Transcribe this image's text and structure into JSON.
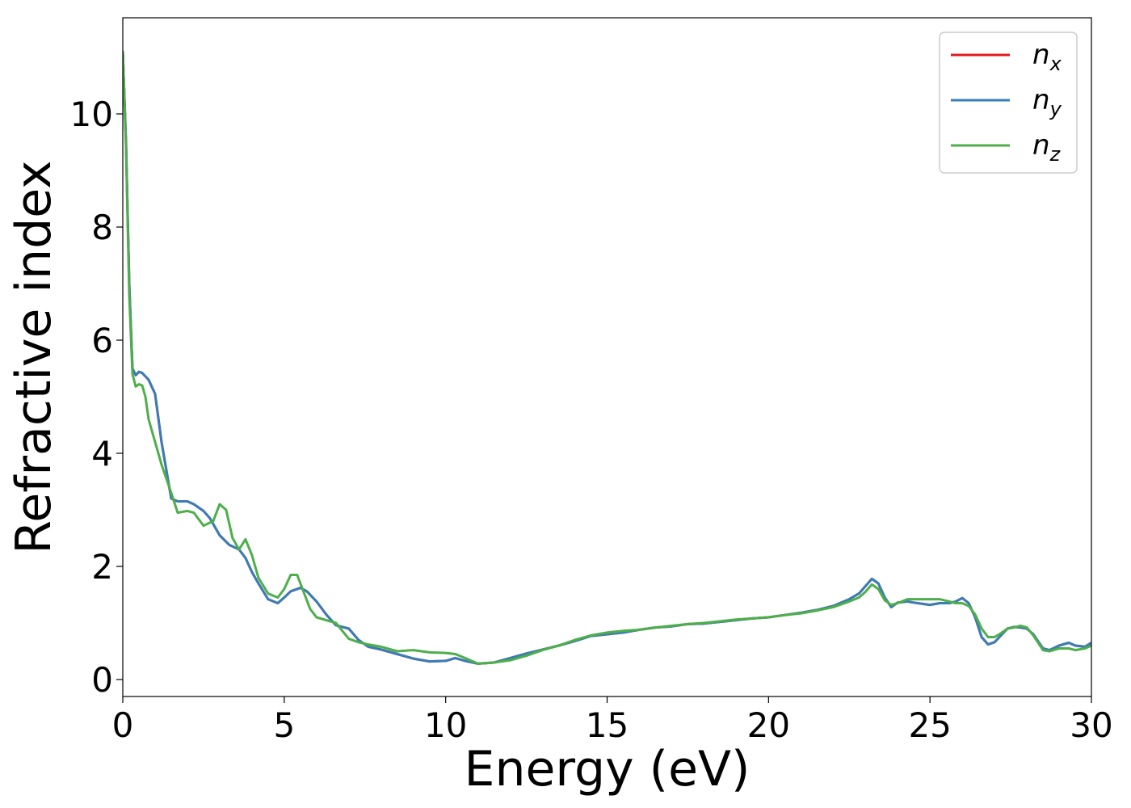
{
  "chart_data": {
    "type": "line",
    "title": "",
    "xlabel": "Energy (eV)",
    "ylabel": "Refractive index",
    "xlim": [
      0,
      30
    ],
    "ylim": [
      -0.3,
      11.7
    ],
    "xticks": [
      0,
      5,
      10,
      15,
      20,
      25,
      30
    ],
    "xtick_labels": [
      "0",
      "5",
      "10",
      "15",
      "20",
      "25",
      "30"
    ],
    "yticks": [
      0,
      2,
      4,
      6,
      8,
      10
    ],
    "ytick_labels": [
      "0",
      "2",
      "4",
      "6",
      "8",
      "10"
    ],
    "grid": false,
    "legend": "top-right",
    "series": [
      {
        "name": "n_x",
        "label_base": "n",
        "label_sub": "x",
        "color": "#e41a1c",
        "x": [
          0.0,
          0.1,
          0.2,
          0.3,
          0.4,
          0.5,
          0.6,
          0.8,
          1.0,
          1.2,
          1.5,
          1.7,
          2.0,
          2.2,
          2.5,
          2.7,
          3.0,
          3.3,
          3.6,
          3.8,
          4.0,
          4.2,
          4.5,
          4.8,
          5.0,
          5.2,
          5.5,
          5.7,
          6.0,
          6.3,
          6.6,
          7.0,
          7.3,
          7.6,
          8.0,
          8.5,
          9.0,
          9.5,
          10.0,
          10.3,
          10.6,
          11.0,
          11.5,
          12.0,
          12.5,
          13.0,
          13.5,
          14.0,
          14.5,
          15.0,
          15.5,
          16.0,
          16.5,
          17.0,
          17.5,
          18.0,
          18.5,
          19.0,
          19.5,
          20.0,
          20.5,
          21.0,
          21.5,
          22.0,
          22.5,
          22.8,
          23.0,
          23.2,
          23.4,
          23.6,
          23.8,
          24.0,
          24.3,
          24.5,
          25.0,
          25.3,
          25.6,
          25.8,
          26.0,
          26.2,
          26.4,
          26.6,
          26.8,
          27.0,
          27.2,
          27.4,
          27.6,
          27.8,
          28.0,
          28.2,
          28.5,
          28.7,
          29.0,
          29.3,
          29.5,
          29.8,
          30.0
        ],
        "y": [
          11.1,
          9.5,
          7.0,
          5.5,
          5.38,
          5.44,
          5.42,
          5.3,
          5.05,
          4.2,
          3.2,
          3.15,
          3.15,
          3.1,
          2.98,
          2.85,
          2.55,
          2.38,
          2.3,
          2.15,
          1.9,
          1.7,
          1.42,
          1.35,
          1.45,
          1.56,
          1.62,
          1.56,
          1.38,
          1.15,
          0.96,
          0.9,
          0.7,
          0.58,
          0.53,
          0.45,
          0.37,
          0.32,
          0.33,
          0.38,
          0.33,
          0.28,
          0.3,
          0.38,
          0.46,
          0.53,
          0.6,
          0.68,
          0.77,
          0.8,
          0.83,
          0.88,
          0.92,
          0.94,
          0.98,
          0.99,
          1.02,
          1.05,
          1.08,
          1.1,
          1.14,
          1.18,
          1.23,
          1.3,
          1.42,
          1.52,
          1.65,
          1.78,
          1.7,
          1.45,
          1.28,
          1.36,
          1.38,
          1.36,
          1.32,
          1.35,
          1.35,
          1.38,
          1.44,
          1.35,
          1.1,
          0.75,
          0.62,
          0.66,
          0.78,
          0.9,
          0.93,
          0.92,
          0.9,
          0.8,
          0.55,
          0.52,
          0.6,
          0.65,
          0.6,
          0.58,
          0.65
        ]
      },
      {
        "name": "n_y",
        "label_base": "n",
        "label_sub": "y",
        "color": "#377eb8",
        "x": [
          0.0,
          0.1,
          0.2,
          0.3,
          0.4,
          0.5,
          0.6,
          0.8,
          1.0,
          1.2,
          1.5,
          1.7,
          2.0,
          2.2,
          2.5,
          2.7,
          3.0,
          3.3,
          3.6,
          3.8,
          4.0,
          4.2,
          4.5,
          4.8,
          5.0,
          5.2,
          5.5,
          5.7,
          6.0,
          6.3,
          6.6,
          7.0,
          7.3,
          7.6,
          8.0,
          8.5,
          9.0,
          9.5,
          10.0,
          10.3,
          10.6,
          11.0,
          11.5,
          12.0,
          12.5,
          13.0,
          13.5,
          14.0,
          14.5,
          15.0,
          15.5,
          16.0,
          16.5,
          17.0,
          17.5,
          18.0,
          18.5,
          19.0,
          19.5,
          20.0,
          20.5,
          21.0,
          21.5,
          22.0,
          22.5,
          22.8,
          23.0,
          23.2,
          23.4,
          23.6,
          23.8,
          24.0,
          24.3,
          24.5,
          25.0,
          25.3,
          25.6,
          25.8,
          26.0,
          26.2,
          26.4,
          26.6,
          26.8,
          27.0,
          27.2,
          27.4,
          27.6,
          27.8,
          28.0,
          28.2,
          28.5,
          28.7,
          29.0,
          29.3,
          29.5,
          29.8,
          30.0
        ],
        "y": [
          11.1,
          9.5,
          7.0,
          5.5,
          5.38,
          5.44,
          5.42,
          5.3,
          5.05,
          4.2,
          3.2,
          3.15,
          3.15,
          3.1,
          2.98,
          2.85,
          2.55,
          2.38,
          2.3,
          2.15,
          1.9,
          1.7,
          1.42,
          1.35,
          1.45,
          1.56,
          1.62,
          1.56,
          1.38,
          1.15,
          0.96,
          0.9,
          0.7,
          0.58,
          0.53,
          0.45,
          0.37,
          0.32,
          0.33,
          0.38,
          0.33,
          0.28,
          0.3,
          0.38,
          0.46,
          0.53,
          0.6,
          0.68,
          0.77,
          0.8,
          0.83,
          0.88,
          0.92,
          0.94,
          0.98,
          0.99,
          1.02,
          1.05,
          1.08,
          1.1,
          1.14,
          1.18,
          1.23,
          1.3,
          1.42,
          1.52,
          1.65,
          1.78,
          1.7,
          1.45,
          1.28,
          1.36,
          1.38,
          1.36,
          1.32,
          1.35,
          1.35,
          1.38,
          1.44,
          1.35,
          1.1,
          0.75,
          0.62,
          0.66,
          0.78,
          0.9,
          0.93,
          0.92,
          0.9,
          0.8,
          0.55,
          0.52,
          0.6,
          0.65,
          0.6,
          0.58,
          0.65
        ]
      },
      {
        "name": "n_z",
        "label_base": "n",
        "label_sub": "z",
        "color": "#4daf4a",
        "x": [
          0.0,
          0.1,
          0.2,
          0.3,
          0.4,
          0.5,
          0.6,
          0.7,
          0.8,
          1.0,
          1.2,
          1.5,
          1.7,
          2.0,
          2.2,
          2.5,
          2.8,
          3.0,
          3.2,
          3.4,
          3.6,
          3.8,
          4.0,
          4.2,
          4.5,
          4.8,
          5.0,
          5.2,
          5.4,
          5.6,
          5.8,
          6.0,
          6.3,
          6.6,
          7.0,
          7.3,
          7.6,
          8.0,
          8.5,
          9.0,
          9.5,
          10.0,
          10.3,
          10.6,
          11.0,
          11.5,
          12.0,
          12.5,
          13.0,
          13.5,
          14.0,
          14.5,
          15.0,
          15.5,
          16.0,
          16.5,
          17.0,
          17.5,
          18.0,
          18.5,
          19.0,
          19.5,
          20.0,
          20.5,
          21.0,
          21.5,
          22.0,
          22.5,
          22.8,
          23.0,
          23.2,
          23.4,
          23.6,
          23.8,
          24.0,
          24.3,
          24.5,
          25.0,
          25.3,
          25.6,
          25.8,
          26.0,
          26.2,
          26.4,
          26.6,
          26.8,
          27.0,
          27.2,
          27.4,
          27.6,
          27.8,
          28.0,
          28.2,
          28.5,
          28.7,
          29.0,
          29.3,
          29.5,
          29.8,
          30.0
        ],
        "y": [
          11.1,
          9.4,
          6.8,
          5.4,
          5.18,
          5.22,
          5.2,
          5.0,
          4.6,
          4.2,
          3.8,
          3.3,
          2.95,
          2.98,
          2.95,
          2.72,
          2.8,
          3.1,
          3.0,
          2.5,
          2.3,
          2.48,
          2.2,
          1.8,
          1.52,
          1.45,
          1.6,
          1.85,
          1.85,
          1.55,
          1.25,
          1.1,
          1.05,
          1.0,
          0.72,
          0.66,
          0.62,
          0.58,
          0.5,
          0.52,
          0.48,
          0.47,
          0.45,
          0.38,
          0.28,
          0.3,
          0.34,
          0.42,
          0.52,
          0.6,
          0.7,
          0.78,
          0.83,
          0.86,
          0.88,
          0.92,
          0.95,
          0.98,
          1.0,
          1.03,
          1.06,
          1.08,
          1.1,
          1.14,
          1.17,
          1.22,
          1.28,
          1.38,
          1.45,
          1.55,
          1.68,
          1.6,
          1.4,
          1.32,
          1.35,
          1.42,
          1.42,
          1.42,
          1.42,
          1.38,
          1.35,
          1.35,
          1.3,
          1.15,
          0.9,
          0.75,
          0.75,
          0.82,
          0.9,
          0.92,
          0.95,
          0.92,
          0.78,
          0.52,
          0.5,
          0.55,
          0.55,
          0.52,
          0.55,
          0.6
        ]
      }
    ]
  }
}
